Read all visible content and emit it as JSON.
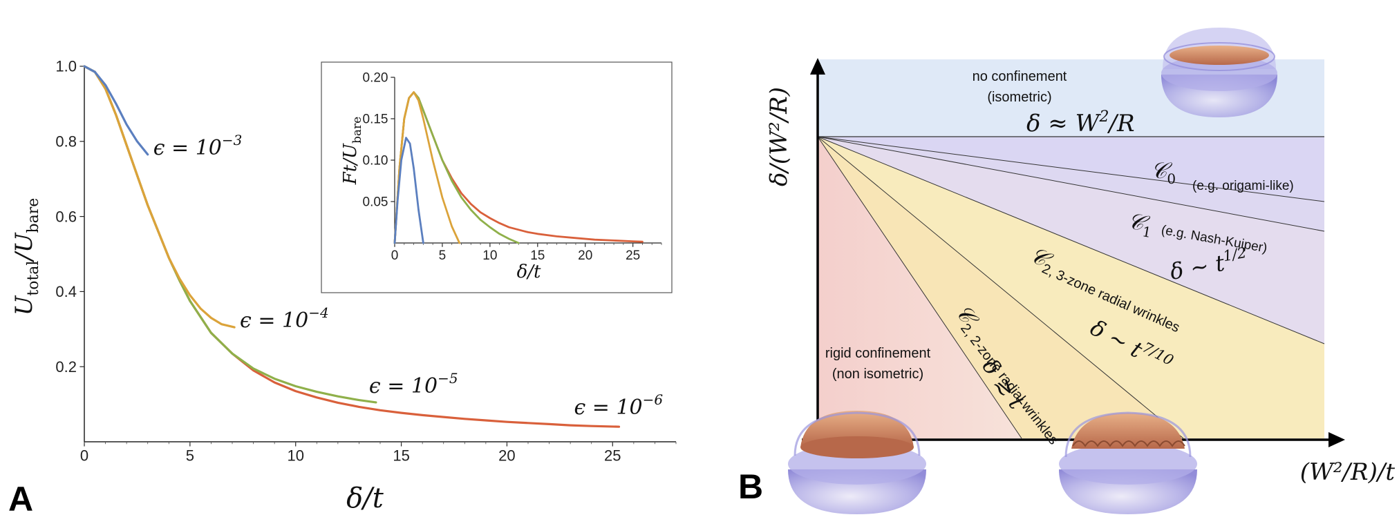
{
  "panels": {
    "a": "A",
    "b": "B"
  },
  "chart_data": [
    {
      "type": "line",
      "panel": "A",
      "xlabel": "δ/t",
      "ylabel": "U_total/U_bare",
      "xlim": [
        0,
        28
      ],
      "ylim": [
        0,
        1.0
      ],
      "xticks": [
        "0",
        "5",
        "10",
        "15",
        "20",
        "25"
      ],
      "yticks": [
        "0.2",
        "0.4",
        "0.6",
        "0.8",
        "1.0"
      ],
      "series": [
        {
          "name": "ε = 10^-6",
          "label": "ϵ = 10",
          "exp": "−6",
          "color": "#d9603b",
          "points": [
            [
              0,
              1.0
            ],
            [
              0.5,
              0.985
            ],
            [
              1,
              0.94
            ],
            [
              1.5,
              0.87
            ],
            [
              2,
              0.79
            ],
            [
              2.5,
              0.71
            ],
            [
              3,
              0.63
            ],
            [
              3.5,
              0.56
            ],
            [
              4,
              0.49
            ],
            [
              4.5,
              0.43
            ],
            [
              5,
              0.375
            ],
            [
              6,
              0.29
            ],
            [
              7,
              0.235
            ],
            [
              8,
              0.19
            ],
            [
              9,
              0.158
            ],
            [
              10,
              0.135
            ],
            [
              11,
              0.118
            ],
            [
              12,
              0.104
            ],
            [
              13,
              0.093
            ],
            [
              14,
              0.084
            ],
            [
              15,
              0.077
            ],
            [
              16,
              0.071
            ],
            [
              17,
              0.066
            ],
            [
              18,
              0.061
            ],
            [
              19,
              0.057
            ],
            [
              20,
              0.053
            ],
            [
              21,
              0.05
            ],
            [
              22,
              0.047
            ],
            [
              23,
              0.044
            ],
            [
              24,
              0.042
            ],
            [
              25.3,
              0.04
            ]
          ]
        },
        {
          "name": "ε = 10^-5",
          "label": "ϵ = 10",
          "exp": "−5",
          "color": "#8fb04a",
          "points": [
            [
              0,
              1.0
            ],
            [
              0.5,
              0.985
            ],
            [
              1,
              0.94
            ],
            [
              1.5,
              0.87
            ],
            [
              2,
              0.79
            ],
            [
              2.5,
              0.71
            ],
            [
              3,
              0.63
            ],
            [
              3.5,
              0.56
            ],
            [
              4,
              0.49
            ],
            [
              4.5,
              0.43
            ],
            [
              5,
              0.375
            ],
            [
              6,
              0.29
            ],
            [
              7,
              0.235
            ],
            [
              8,
              0.195
            ],
            [
              9,
              0.168
            ],
            [
              10,
              0.148
            ],
            [
              11,
              0.133
            ],
            [
              12,
              0.121
            ],
            [
              13,
              0.111
            ],
            [
              13.8,
              0.105
            ]
          ]
        },
        {
          "name": "ε = 10^-4",
          "label": "ϵ = 10",
          "exp": "−4",
          "color": "#dba33a",
          "points": [
            [
              0,
              1.0
            ],
            [
              0.5,
              0.985
            ],
            [
              1,
              0.94
            ],
            [
              1.5,
              0.87
            ],
            [
              2,
              0.79
            ],
            [
              2.5,
              0.71
            ],
            [
              3,
              0.63
            ],
            [
              3.5,
              0.56
            ],
            [
              4,
              0.49
            ],
            [
              4.5,
              0.435
            ],
            [
              5,
              0.39
            ],
            [
              5.5,
              0.355
            ],
            [
              6,
              0.33
            ],
            [
              6.5,
              0.313
            ],
            [
              7.1,
              0.305
            ]
          ]
        },
        {
          "name": "ε = 10^-3",
          "label": "ϵ = 10",
          "exp": "−3",
          "color": "#5b7fbf",
          "points": [
            [
              0,
              1.0
            ],
            [
              0.5,
              0.985
            ],
            [
              1,
              0.95
            ],
            [
              1.5,
              0.9
            ],
            [
              2,
              0.845
            ],
            [
              2.5,
              0.8
            ],
            [
              3,
              0.765
            ]
          ]
        }
      ]
    },
    {
      "type": "line",
      "panel": "A-inset",
      "xlabel": "δ/t",
      "ylabel": "Ft/U_bare",
      "xlim": [
        0,
        28
      ],
      "ylim": [
        0,
        0.2
      ],
      "xticks": [
        "0",
        "5",
        "10",
        "15",
        "20",
        "25"
      ],
      "yticks": [
        "0.05",
        "0.10",
        "0.15",
        "0.20"
      ],
      "series": [
        {
          "name": "ε = 10^-6",
          "color": "#d9603b",
          "points": [
            [
              0,
              0
            ],
            [
              0.5,
              0.09
            ],
            [
              1,
              0.15
            ],
            [
              1.5,
              0.175
            ],
            [
              2,
              0.182
            ],
            [
              2.5,
              0.175
            ],
            [
              3,
              0.16
            ],
            [
              4,
              0.13
            ],
            [
              5,
              0.1
            ],
            [
              6,
              0.078
            ],
            [
              7,
              0.06
            ],
            [
              8,
              0.047
            ],
            [
              9,
              0.037
            ],
            [
              10,
              0.03
            ],
            [
              11,
              0.024
            ],
            [
              12,
              0.019
            ],
            [
              13,
              0.016
            ],
            [
              14,
              0.013
            ],
            [
              15,
              0.011
            ],
            [
              17,
              0.008
            ],
            [
              19,
              0.006
            ],
            [
              21,
              0.004
            ],
            [
              23,
              0.003
            ],
            [
              25,
              0.002
            ],
            [
              26,
              0.0015
            ]
          ]
        },
        {
          "name": "ε = 10^-5",
          "color": "#8fb04a",
          "points": [
            [
              0,
              0
            ],
            [
              0.5,
              0.09
            ],
            [
              1,
              0.15
            ],
            [
              1.5,
              0.175
            ],
            [
              2,
              0.182
            ],
            [
              2.5,
              0.175
            ],
            [
              3,
              0.16
            ],
            [
              4,
              0.13
            ],
            [
              5,
              0.1
            ],
            [
              6,
              0.075
            ],
            [
              7,
              0.055
            ],
            [
              8,
              0.04
            ],
            [
              9,
              0.028
            ],
            [
              10,
              0.019
            ],
            [
              11,
              0.011
            ],
            [
              12,
              0.005
            ],
            [
              13,
              0.0
            ]
          ]
        },
        {
          "name": "ε = 10^-4",
          "color": "#dba33a",
          "points": [
            [
              0,
              0
            ],
            [
              0.5,
              0.09
            ],
            [
              1,
              0.15
            ],
            [
              1.5,
              0.175
            ],
            [
              2,
              0.182
            ],
            [
              2.5,
              0.172
            ],
            [
              3,
              0.15
            ],
            [
              4,
              0.1
            ],
            [
              5,
              0.055
            ],
            [
              6,
              0.02
            ],
            [
              6.8,
              0.0
            ]
          ]
        },
        {
          "name": "ε = 10^-3",
          "color": "#5b7fbf",
          "points": [
            [
              0,
              0
            ],
            [
              0.3,
              0.05
            ],
            [
              0.7,
              0.1
            ],
            [
              1.2,
              0.127
            ],
            [
              1.6,
              0.12
            ],
            [
              2,
              0.09
            ],
            [
              2.5,
              0.04
            ],
            [
              3,
              0.0
            ]
          ]
        }
      ]
    },
    {
      "type": "diagram",
      "panel": "B",
      "xlabel": "(W²/R)/t",
      "ylabel": "δ/(W²/R)",
      "regions": [
        {
          "name": "no confinement",
          "text1": "no confinement",
          "text2": "(isometric)",
          "color": "#dce8f7"
        },
        {
          "name": "C0",
          "symbol": "𝒞",
          "sub": "0",
          "note": "(e.g. origami-like)",
          "color": "#d9d4f2"
        },
        {
          "name": "C1",
          "symbol": "𝒞",
          "sub": "1",
          "note": "(e.g. Nash-Kuiper)",
          "color": "#e6dbea"
        },
        {
          "name": "C2 3-zone",
          "symbol": "𝒞",
          "sub": "2, 3-zone radial wrinkles",
          "color": "#f8eab8"
        },
        {
          "name": "C2 2-zone",
          "symbol": "𝒞",
          "sub": "2, 2-zone radial wrinkles",
          "color": "#f8e6b5"
        },
        {
          "name": "rigid confinement",
          "text1": "rigid confinement",
          "text2": "(non isometric)",
          "color": "#f5d6d3"
        }
      ],
      "scalings": {
        "top": "δ ≈ W",
        "top_sup": "2",
        "top_tail": "/R",
        "c1": "δ ∼ t",
        "c1_sup": "1/2",
        "c2": "δ ∼ t",
        "c2_sup": "7/10",
        "c22": "δ ≳ t"
      }
    }
  ]
}
